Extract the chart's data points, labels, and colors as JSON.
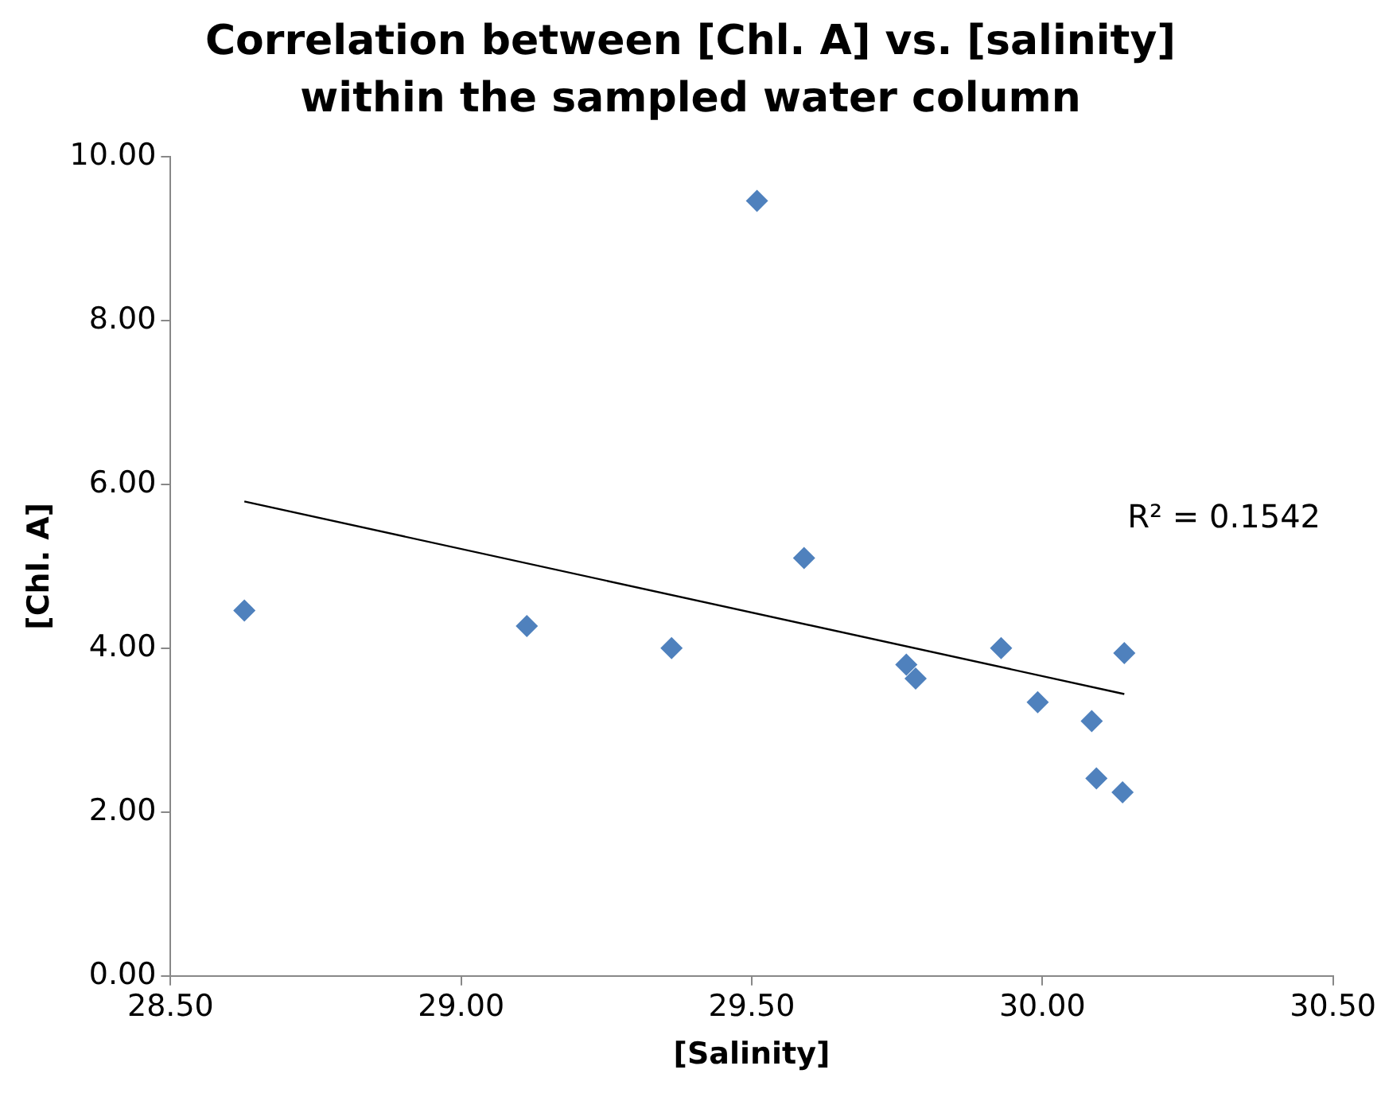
{
  "chart_data": {
    "type": "scatter",
    "title": "Correlation between [Chl. A] vs. [salinity] within the sampled water column",
    "xlabel": "[Salinity]",
    "ylabel": "[Chl. A]",
    "series": [
      {
        "type": "scatter",
        "color": "#4f81bd",
        "marker": "diamond",
        "x": [
          28.627,
          29.113,
          29.362,
          29.509,
          29.59,
          29.766,
          29.782,
          29.929,
          29.992,
          30.085,
          30.093,
          30.138,
          30.141
        ],
        "values": [
          4.46,
          4.27,
          4.0,
          9.46,
          5.1,
          3.8,
          3.63,
          4.0,
          3.34,
          3.11,
          2.41,
          2.24,
          3.94
        ]
      },
      {
        "type": "line",
        "color": "#000000",
        "marker": "none",
        "x": [
          28.627,
          30.141
        ],
        "values": [
          5.79,
          3.44
        ]
      }
    ],
    "annotations": [
      "R² = 0.1542"
    ],
    "xlim": [
      28.5,
      30.5
    ],
    "xticks": [
      {
        "value": 28.5,
        "label": "28.50"
      },
      {
        "value": 29,
        "label": "29.00"
      },
      {
        "value": 29.5,
        "label": "29.50"
      },
      {
        "value": 30,
        "label": "30.00"
      },
      {
        "value": 30.5,
        "label": "30.50"
      }
    ],
    "ylim": [
      0,
      10
    ],
    "yticks": [
      {
        "value": 0,
        "label": "0.00"
      },
      {
        "value": 2,
        "label": "2.00"
      },
      {
        "value": 4,
        "label": "4.00"
      },
      {
        "value": 6,
        "label": "6.00"
      },
      {
        "value": 8,
        "label": "8.00"
      },
      {
        "value": 10,
        "label": "10.00"
      }
    ],
    "grid": false,
    "legend": false
  }
}
